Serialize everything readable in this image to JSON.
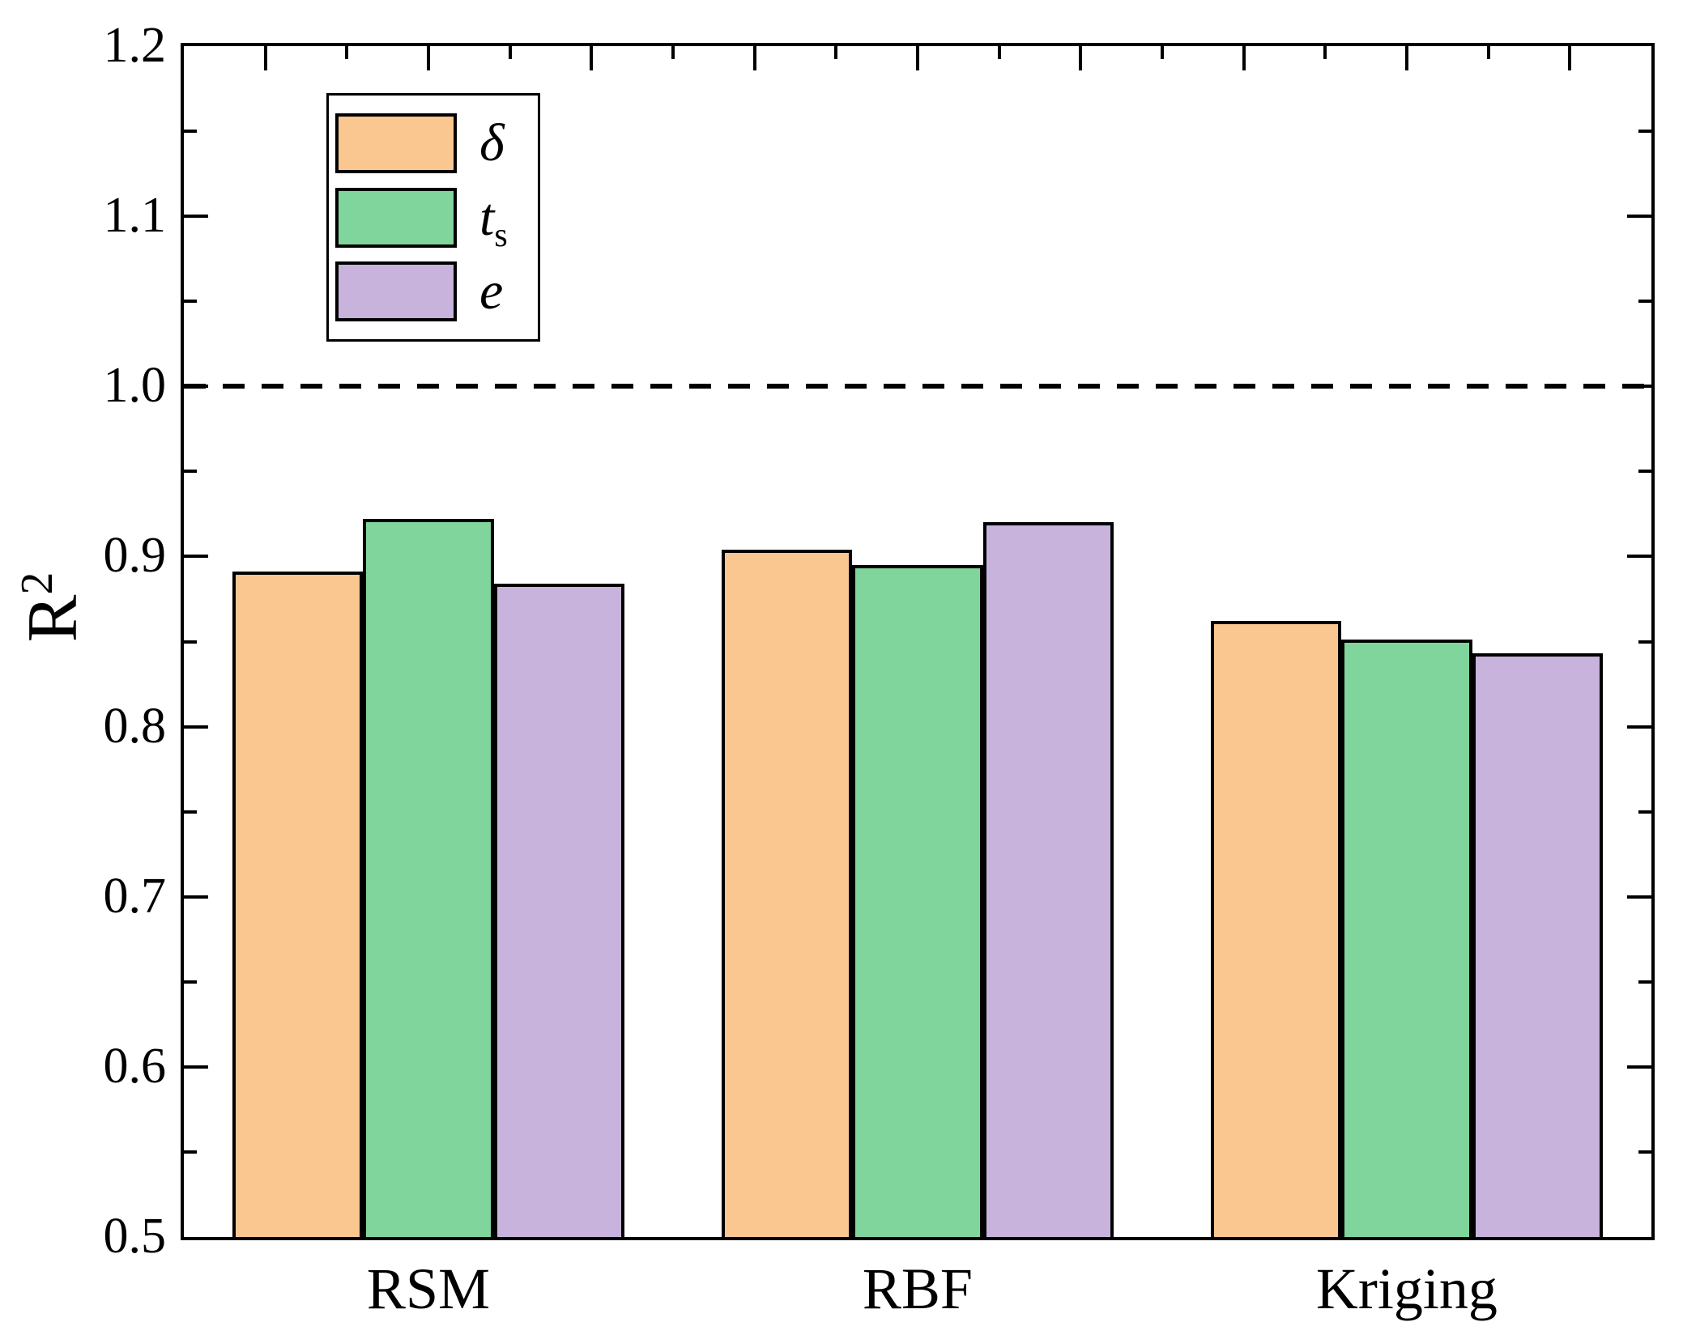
{
  "figure": {
    "background": "#ffffff"
  },
  "chart_data": {
    "type": "bar",
    "title": "",
    "xlabel": "",
    "ylabel_main": "R",
    "ylabel_sup": "2",
    "categories": [
      "RSM",
      "RBF",
      "Kriging"
    ],
    "series": [
      {
        "id": "delta",
        "name": "δ",
        "label_sub": "",
        "color": "#FBC791",
        "values": [
          0.891,
          0.904,
          0.862
        ]
      },
      {
        "id": "ts",
        "name": "t",
        "label_sub": "s",
        "color": "#80D59D",
        "values": [
          0.922,
          0.895,
          0.851
        ]
      },
      {
        "id": "e",
        "name": "e",
        "label_sub": "",
        "color": "#C7B3DB",
        "values": [
          0.884,
          0.92,
          0.843
        ]
      }
    ],
    "ylim": [
      0.5,
      1.2
    ],
    "yticks": [
      1.2,
      1.1,
      1.0,
      0.9,
      0.8,
      0.7,
      0.6,
      0.5
    ],
    "ytick_labels": [
      "1.2",
      "1.1",
      "1.0",
      "0.9",
      "0.8",
      "0.7",
      "0.6",
      "0.5"
    ],
    "minor_ytick_step": 0.05,
    "reference_line": {
      "value": 1.0,
      "style": "dashed",
      "color": "#000000"
    },
    "legend_position": "upper-left-inside",
    "grid": false,
    "bar_edge_color": "#000000",
    "axis_color": "#000000"
  }
}
